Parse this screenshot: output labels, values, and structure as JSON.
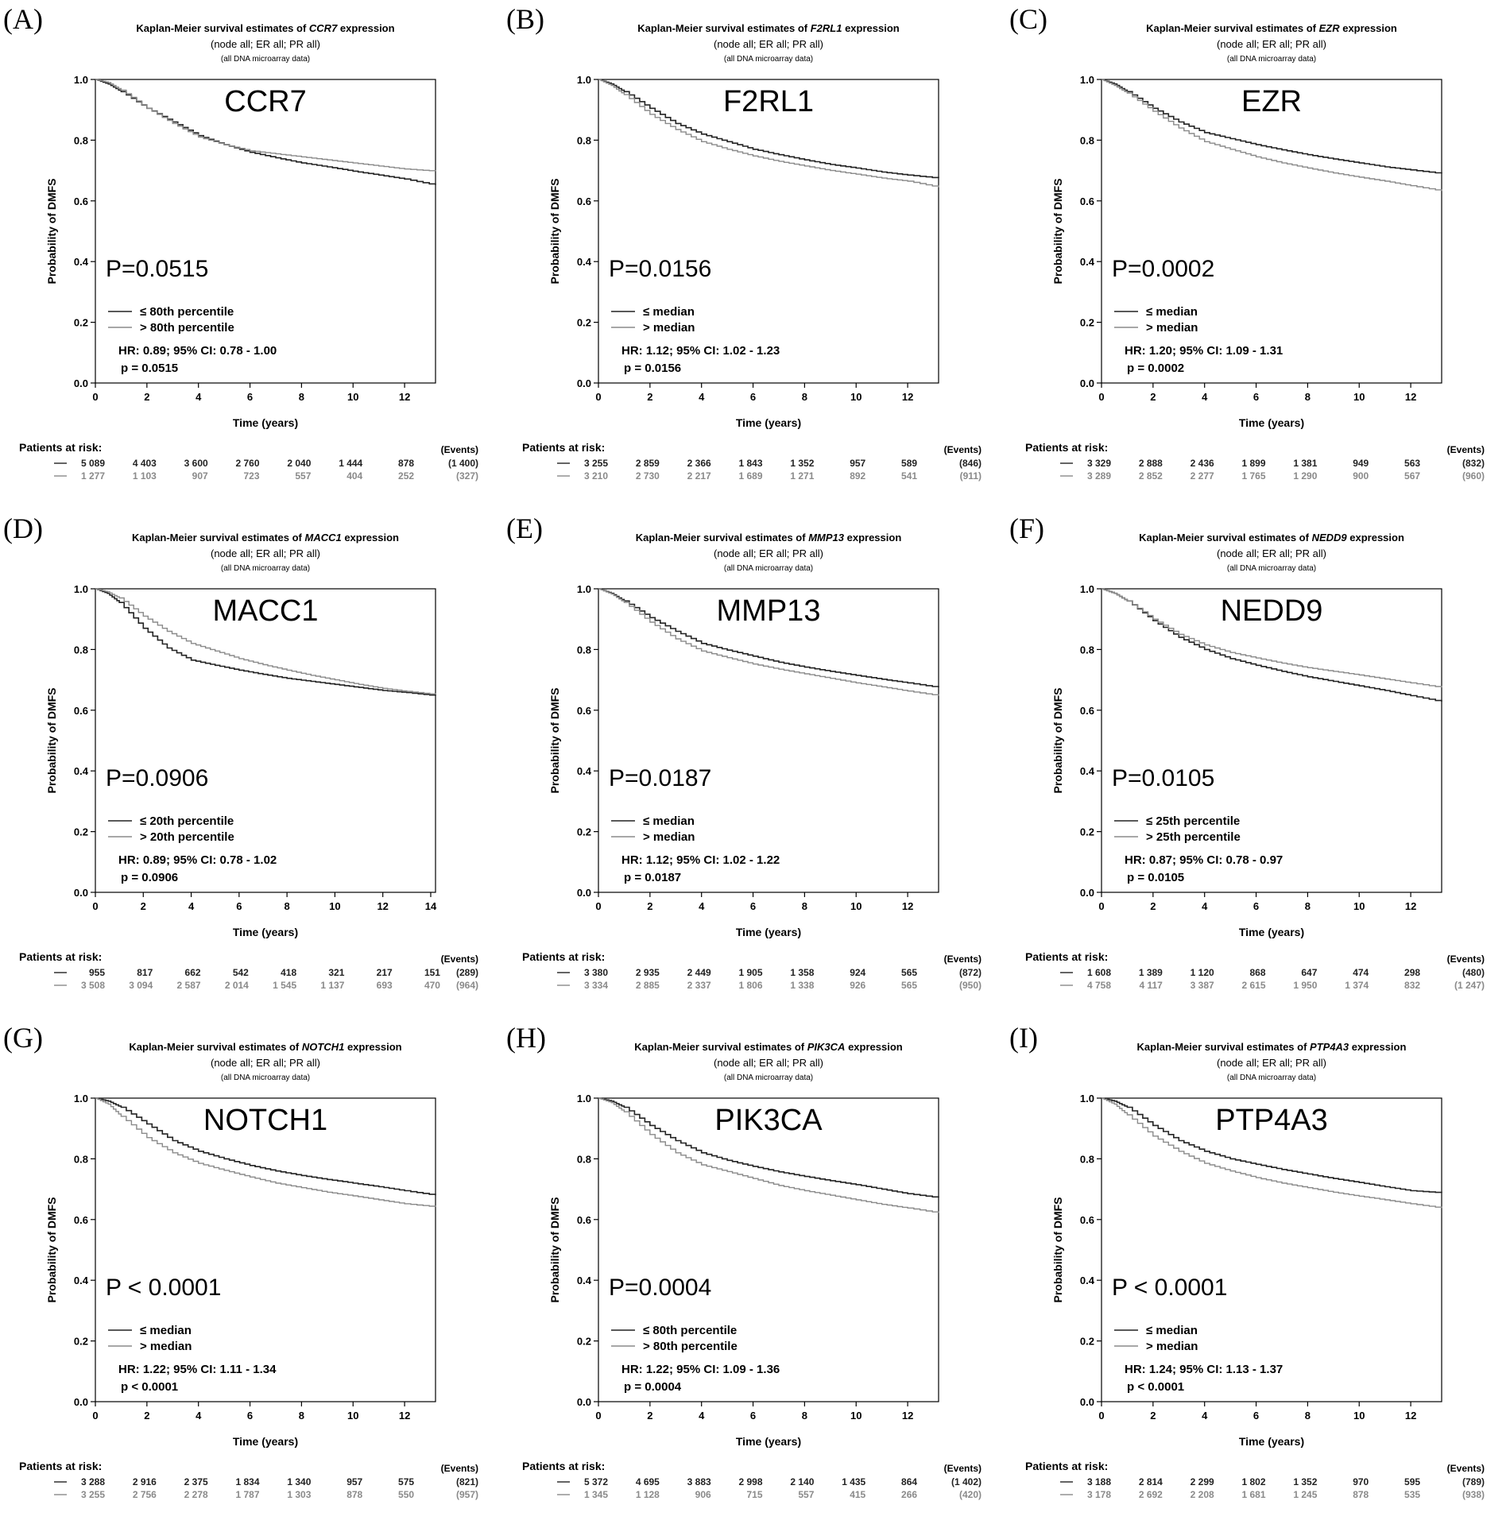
{
  "common": {
    "title_prefix": "Kaplan-Meier survival estimates of ",
    "title_suffix": " expression",
    "subtitle": "(node all; ER all; PR all)",
    "subtitle2": "(all DNA microarray data)",
    "ylabel": "Probability of DMFS",
    "xlabel": "Time (years)",
    "risk_label": "Patients at risk:",
    "events_label": "(Events)",
    "colors": {
      "low": "#222222",
      "high": "#8a8a8a"
    }
  },
  "panels": [
    {
      "panel_label": "(A)",
      "gene": "CCR7",
      "p_text": "P=0.0515",
      "legend_low": "≤ 80th percentile",
      "legend_high": "> 80th percentile",
      "hr_text": "HR: 0.89; 95% CI: 0.78 - 1.00",
      "p_line": "p = 0.0515",
      "risk": {
        "low": [
          "5 089",
          "4 403",
          "3 600",
          "2 760",
          "2 040",
          "1 444",
          "878"
        ],
        "low_events": "(1 400)",
        "high": [
          "1 277",
          "1 103",
          "907",
          "723",
          "557",
          "404",
          "252"
        ],
        "high_events": "(327)"
      }
    },
    {
      "panel_label": "(B)",
      "gene": "F2RL1",
      "p_text": "P=0.0156",
      "legend_low": "≤ median",
      "legend_high": "> median",
      "hr_text": "HR: 1.12; 95% CI: 1.02 - 1.23",
      "p_line": "p = 0.0156",
      "risk": {
        "low": [
          "3 255",
          "2 859",
          "2 366",
          "1 843",
          "1 352",
          "957",
          "589"
        ],
        "low_events": "(846)",
        "high": [
          "3 210",
          "2 730",
          "2 217",
          "1 689",
          "1 271",
          "892",
          "541"
        ],
        "high_events": "(911)"
      }
    },
    {
      "panel_label": "(C)",
      "gene": "EZR",
      "p_text": "P=0.0002",
      "legend_low": "≤ median",
      "legend_high": "> median",
      "hr_text": "HR: 1.20; 95% CI: 1.09 - 1.31",
      "p_line": "p = 0.0002",
      "risk": {
        "low": [
          "3 329",
          "2 888",
          "2 436",
          "1 899",
          "1 381",
          "949",
          "563"
        ],
        "low_events": "(832)",
        "high": [
          "3 289",
          "2 852",
          "2 277",
          "1 765",
          "1 290",
          "900",
          "567"
        ],
        "high_events": "(960)"
      }
    },
    {
      "panel_label": "(D)",
      "gene": "MACC1",
      "p_text": "P=0.0906",
      "legend_low": "≤ 20th percentile",
      "legend_high": "> 20th percentile",
      "hr_text": "HR: 0.89; 95% CI: 0.78 - 1.02",
      "p_line": "p = 0.0906",
      "risk": {
        "low": [
          "955",
          "817",
          "662",
          "542",
          "418",
          "321",
          "217",
          "151"
        ],
        "low_events": "(289)",
        "high": [
          "3 508",
          "3 094",
          "2 587",
          "2 014",
          "1 545",
          "1 137",
          "693",
          "470"
        ],
        "high_events": "(964)"
      }
    },
    {
      "panel_label": "(E)",
      "gene": "MMP13",
      "p_text": "P=0.0187",
      "legend_low": "≤ median",
      "legend_high": "> median",
      "hr_text": "HR: 1.12; 95% CI: 1.02 - 1.22",
      "p_line": "p = 0.0187",
      "risk": {
        "low": [
          "3 380",
          "2 935",
          "2 449",
          "1 905",
          "1 358",
          "924",
          "565"
        ],
        "low_events": "(872)",
        "high": [
          "3 334",
          "2 885",
          "2 337",
          "1 806",
          "1 338",
          "926",
          "565"
        ],
        "high_events": "(950)"
      }
    },
    {
      "panel_label": "(F)",
      "gene": "NEDD9",
      "p_text": "P=0.0105",
      "legend_low": "≤ 25th percentile",
      "legend_high": "> 25th percentile",
      "hr_text": "HR: 0.87; 95% CI: 0.78 - 0.97",
      "p_line": "p = 0.0105",
      "risk": {
        "low": [
          "1 608",
          "1 389",
          "1 120",
          "868",
          "647",
          "474",
          "298"
        ],
        "low_events": "(480)",
        "high": [
          "4 758",
          "4 117",
          "3 387",
          "2 615",
          "1 950",
          "1 374",
          "832"
        ],
        "high_events": "(1 247)"
      }
    },
    {
      "panel_label": "(G)",
      "gene": "NOTCH1",
      "p_text": "P < 0.0001",
      "legend_low": "≤ median",
      "legend_high": "> median",
      "hr_text": "HR: 1.22; 95% CI: 1.11 - 1.34",
      "p_line": "p < 0.0001",
      "risk": {
        "low": [
          "3 288",
          "2 916",
          "2 375",
          "1 834",
          "1 340",
          "957",
          "575"
        ],
        "low_events": "(821)",
        "high": [
          "3 255",
          "2 756",
          "2 278",
          "1 787",
          "1 303",
          "878",
          "550"
        ],
        "high_events": "(957)"
      }
    },
    {
      "panel_label": "(H)",
      "gene": "PIK3CA",
      "p_text": "P=0.0004",
      "legend_low": "≤ 80th percentile",
      "legend_high": "> 80th percentile",
      "hr_text": "HR: 1.22; 95% CI: 1.09 - 1.36",
      "p_line": "p = 0.0004",
      "risk": {
        "low": [
          "5 372",
          "4 695",
          "3 883",
          "2 998",
          "2 140",
          "1 435",
          "864"
        ],
        "low_events": "(1 402)",
        "high": [
          "1 345",
          "1 128",
          "906",
          "715",
          "557",
          "415",
          "266"
        ],
        "high_events": "(420)"
      }
    },
    {
      "panel_label": "(I)",
      "gene": "PTP4A3",
      "p_text": "P < 0.0001",
      "legend_low": "≤ median",
      "legend_high": "> median",
      "hr_text": "HR: 1.24; 95% CI: 1.13 - 1.37",
      "p_line": "p < 0.0001",
      "risk": {
        "low": [
          "3 188",
          "2 814",
          "2 299",
          "1 802",
          "1 352",
          "970",
          "595"
        ],
        "low_events": "(789)",
        "high": [
          "3 178",
          "2 692",
          "2 208",
          "1 681",
          "1 245",
          "878",
          "535"
        ],
        "high_events": "(938)"
      }
    }
  ],
  "chart_data": [
    {
      "type": "line",
      "title": "Kaplan-Meier survival estimates of CCR7 expression",
      "xlabel": "Time (years)",
      "ylabel": "Probability of DMFS",
      "xlim": [
        0,
        13.2
      ],
      "ylim": [
        0,
        1.0
      ],
      "x_ticks": [
        0,
        2,
        4,
        6,
        8,
        10,
        12
      ],
      "y_ticks": [
        0.0,
        0.2,
        0.4,
        0.6,
        0.8,
        1.0
      ],
      "x": [
        0,
        0.5,
        1,
        2,
        3,
        4,
        5,
        6,
        7,
        8,
        9,
        10,
        11,
        12,
        13.2
      ],
      "series": [
        {
          "name": "≤ 80th percentile",
          "values": [
            1.0,
            0.985,
            0.96,
            0.905,
            0.86,
            0.815,
            0.785,
            0.76,
            0.742,
            0.725,
            0.712,
            0.698,
            0.685,
            0.672,
            0.652
          ]
        },
        {
          "name": "> 80th percentile",
          "values": [
            1.0,
            0.99,
            0.965,
            0.905,
            0.855,
            0.81,
            0.785,
            0.765,
            0.755,
            0.745,
            0.735,
            0.725,
            0.715,
            0.705,
            0.698
          ]
        }
      ]
    },
    {
      "type": "line",
      "title": "Kaplan-Meier survival estimates of F2RL1 expression",
      "xlabel": "Time (years)",
      "ylabel": "Probability of DMFS",
      "xlim": [
        0,
        13.2
      ],
      "ylim": [
        0,
        1.0
      ],
      "x_ticks": [
        0,
        2,
        4,
        6,
        8,
        10,
        12
      ],
      "y_ticks": [
        0.0,
        0.2,
        0.4,
        0.6,
        0.8,
        1.0
      ],
      "x": [
        0,
        0.5,
        1,
        2,
        3,
        4,
        5,
        6,
        7,
        8,
        9,
        10,
        11,
        12,
        13.2
      ],
      "series": [
        {
          "name": "≤ median",
          "values": [
            1.0,
            0.985,
            0.96,
            0.905,
            0.855,
            0.82,
            0.795,
            0.77,
            0.752,
            0.735,
            0.72,
            0.708,
            0.695,
            0.685,
            0.675
          ]
        },
        {
          "name": "> median",
          "values": [
            1.0,
            0.98,
            0.95,
            0.885,
            0.835,
            0.795,
            0.77,
            0.748,
            0.73,
            0.715,
            0.7,
            0.688,
            0.675,
            0.665,
            0.645
          ]
        }
      ]
    },
    {
      "type": "line",
      "title": "Kaplan-Meier survival estimates of EZR expression",
      "xlabel": "Time (years)",
      "ylabel": "Probability of DMFS",
      "xlim": [
        0,
        13.2
      ],
      "ylim": [
        0,
        1.0
      ],
      "x_ticks": [
        0,
        2,
        4,
        6,
        8,
        10,
        12
      ],
      "y_ticks": [
        0.0,
        0.2,
        0.4,
        0.6,
        0.8,
        1.0
      ],
      "x": [
        0,
        0.5,
        1,
        2,
        3,
        4,
        5,
        6,
        7,
        8,
        9,
        10,
        11,
        12,
        13.2
      ],
      "series": [
        {
          "name": "≤ median",
          "values": [
            1.0,
            0.985,
            0.96,
            0.905,
            0.86,
            0.825,
            0.805,
            0.785,
            0.768,
            0.752,
            0.738,
            0.725,
            0.712,
            0.702,
            0.69
          ]
        },
        {
          "name": "> median",
          "values": [
            1.0,
            0.98,
            0.955,
            0.895,
            0.84,
            0.795,
            0.77,
            0.745,
            0.725,
            0.708,
            0.692,
            0.678,
            0.665,
            0.65,
            0.633
          ]
        }
      ]
    },
    {
      "type": "line",
      "title": "Kaplan-Meier survival estimates of MACC1 expression",
      "xlabel": "Time (years)",
      "ylabel": "Probability of DMFS",
      "xlim": [
        0,
        14.2
      ],
      "ylim": [
        0,
        1.0
      ],
      "x_ticks": [
        0,
        2,
        4,
        6,
        8,
        10,
        12,
        14
      ],
      "y_ticks": [
        0.0,
        0.2,
        0.4,
        0.6,
        0.8,
        1.0
      ],
      "x": [
        0,
        0.5,
        1,
        2,
        3,
        4,
        5,
        6,
        7,
        8,
        9,
        10,
        11,
        12,
        13,
        14.2
      ],
      "series": [
        {
          "name": "≤ 20th percentile",
          "values": [
            1.0,
            0.985,
            0.955,
            0.87,
            0.805,
            0.765,
            0.748,
            0.732,
            0.718,
            0.705,
            0.695,
            0.685,
            0.675,
            0.665,
            0.658,
            0.648
          ]
        },
        {
          "name": "> 20th percentile",
          "values": [
            1.0,
            0.99,
            0.97,
            0.91,
            0.86,
            0.82,
            0.795,
            0.77,
            0.75,
            0.732,
            0.715,
            0.7,
            0.685,
            0.672,
            0.662,
            0.652
          ]
        }
      ]
    },
    {
      "type": "line",
      "title": "Kaplan-Meier survival estimates of MMP13 expression",
      "xlabel": "Time (years)",
      "ylabel": "Probability of DMFS",
      "xlim": [
        0,
        13.2
      ],
      "ylim": [
        0,
        1.0
      ],
      "x_ticks": [
        0,
        2,
        4,
        6,
        8,
        10,
        12
      ],
      "y_ticks": [
        0.0,
        0.2,
        0.4,
        0.6,
        0.8,
        1.0
      ],
      "x": [
        0,
        0.5,
        1,
        2,
        3,
        4,
        5,
        6,
        7,
        8,
        9,
        10,
        11,
        12,
        13.2
      ],
      "series": [
        {
          "name": "≤ median",
          "values": [
            1.0,
            0.985,
            0.96,
            0.905,
            0.86,
            0.82,
            0.798,
            0.778,
            0.758,
            0.742,
            0.728,
            0.715,
            0.702,
            0.69,
            0.675
          ]
        },
        {
          "name": "> median",
          "values": [
            1.0,
            0.983,
            0.955,
            0.89,
            0.835,
            0.795,
            0.773,
            0.752,
            0.735,
            0.72,
            0.705,
            0.69,
            0.677,
            0.663,
            0.648
          ]
        }
      ]
    },
    {
      "type": "line",
      "title": "Kaplan-Meier survival estimates of NEDD9 expression",
      "xlabel": "Time (years)",
      "ylabel": "Probability of DMFS",
      "xlim": [
        0,
        13.2
      ],
      "ylim": [
        0,
        1.0
      ],
      "x_ticks": [
        0,
        2,
        4,
        6,
        8,
        10,
        12
      ],
      "y_ticks": [
        0.0,
        0.2,
        0.4,
        0.6,
        0.8,
        1.0
      ],
      "x": [
        0,
        0.5,
        1,
        2,
        3,
        4,
        5,
        6,
        7,
        8,
        9,
        10,
        11,
        12,
        13.2
      ],
      "series": [
        {
          "name": "≤ 25th percentile",
          "values": [
            1.0,
            0.985,
            0.96,
            0.895,
            0.84,
            0.8,
            0.77,
            0.748,
            0.728,
            0.71,
            0.695,
            0.68,
            0.665,
            0.648,
            0.628
          ]
        },
        {
          "name": "> 25th percentile",
          "values": [
            1.0,
            0.985,
            0.96,
            0.9,
            0.85,
            0.815,
            0.79,
            0.772,
            0.755,
            0.74,
            0.728,
            0.716,
            0.703,
            0.69,
            0.675
          ]
        }
      ]
    },
    {
      "type": "line",
      "title": "Kaplan-Meier survival estimates of NOTCH1 expression",
      "xlabel": "Time (years)",
      "ylabel": "Probability of DMFS",
      "xlim": [
        0,
        13.2
      ],
      "ylim": [
        0,
        1.0
      ],
      "x_ticks": [
        0,
        2,
        4,
        6,
        8,
        10,
        12
      ],
      "y_ticks": [
        0.0,
        0.2,
        0.4,
        0.6,
        0.8,
        1.0
      ],
      "x": [
        0,
        0.5,
        1,
        2,
        3,
        4,
        5,
        6,
        7,
        8,
        9,
        10,
        11,
        12,
        13.2
      ],
      "series": [
        {
          "name": "≤ median",
          "values": [
            1.0,
            0.99,
            0.97,
            0.915,
            0.86,
            0.825,
            0.8,
            0.778,
            0.76,
            0.745,
            0.732,
            0.72,
            0.708,
            0.695,
            0.68
          ]
        },
        {
          "name": "> median",
          "values": [
            1.0,
            0.98,
            0.94,
            0.87,
            0.82,
            0.785,
            0.762,
            0.74,
            0.72,
            0.705,
            0.69,
            0.678,
            0.665,
            0.652,
            0.642
          ]
        }
      ]
    },
    {
      "type": "line",
      "title": "Kaplan-Meier survival estimates of PIK3CA expression",
      "xlabel": "Time (years)",
      "ylabel": "Probability of DMFS",
      "xlim": [
        0,
        13.2
      ],
      "ylim": [
        0,
        1.0
      ],
      "x_ticks": [
        0,
        2,
        4,
        6,
        8,
        10,
        12
      ],
      "y_ticks": [
        0.0,
        0.2,
        0.4,
        0.6,
        0.8,
        1.0
      ],
      "x": [
        0,
        0.5,
        1,
        2,
        3,
        4,
        5,
        6,
        7,
        8,
        9,
        10,
        11,
        12,
        13.2
      ],
      "series": [
        {
          "name": "≤ 80th percentile",
          "values": [
            1.0,
            0.99,
            0.97,
            0.91,
            0.86,
            0.82,
            0.795,
            0.775,
            0.757,
            0.742,
            0.728,
            0.715,
            0.7,
            0.685,
            0.672
          ]
        },
        {
          "name": "> 80th percentile",
          "values": [
            1.0,
            0.985,
            0.955,
            0.88,
            0.82,
            0.78,
            0.758,
            0.735,
            0.712,
            0.695,
            0.68,
            0.665,
            0.65,
            0.638,
            0.622
          ]
        }
      ]
    },
    {
      "type": "line",
      "title": "Kaplan-Meier survival estimates of PTP4A3 expression",
      "xlabel": "Time (years)",
      "ylabel": "Probability of DMFS",
      "xlim": [
        0,
        13.2
      ],
      "ylim": [
        0,
        1.0
      ],
      "x_ticks": [
        0,
        2,
        4,
        6,
        8,
        10,
        12
      ],
      "y_ticks": [
        0.0,
        0.2,
        0.4,
        0.6,
        0.8,
        1.0
      ],
      "x": [
        0,
        0.5,
        1,
        2,
        3,
        4,
        5,
        6,
        7,
        8,
        9,
        10,
        11,
        12,
        13.2
      ],
      "series": [
        {
          "name": "≤ median",
          "values": [
            1.0,
            0.99,
            0.97,
            0.91,
            0.86,
            0.825,
            0.8,
            0.782,
            0.765,
            0.75,
            0.735,
            0.722,
            0.708,
            0.695,
            0.688
          ]
        },
        {
          "name": "> median",
          "values": [
            1.0,
            0.98,
            0.945,
            0.875,
            0.825,
            0.785,
            0.76,
            0.738,
            0.72,
            0.705,
            0.69,
            0.677,
            0.665,
            0.652,
            0.638
          ]
        }
      ]
    }
  ]
}
